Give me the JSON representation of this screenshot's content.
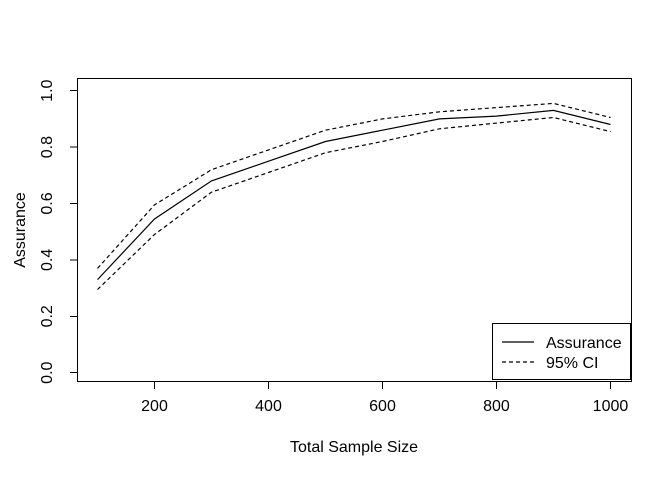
{
  "chart_data": {
    "type": "line",
    "title": "",
    "xlabel": "Total Sample Size",
    "ylabel": "Assurance",
    "x": [
      100,
      200,
      300,
      400,
      500,
      600,
      700,
      800,
      900,
      1000
    ],
    "series": [
      {
        "name": "Assurance",
        "line_style": "solid",
        "values": [
          0.33,
          0.545,
          0.68,
          0.75,
          0.82,
          0.86,
          0.9,
          0.91,
          0.93,
          0.88
        ]
      },
      {
        "name": "95% CI",
        "line_style": "dashed",
        "values_upper": [
          0.37,
          0.595,
          0.72,
          0.79,
          0.86,
          0.9,
          0.925,
          0.94,
          0.955,
          0.905
        ],
        "values_lower": [
          0.295,
          0.49,
          0.64,
          0.71,
          0.78,
          0.82,
          0.865,
          0.885,
          0.905,
          0.855
        ]
      }
    ],
    "x_ticks": [
      200,
      400,
      600,
      800,
      1000
    ],
    "y_ticks": [
      "0.0",
      "0.2",
      "0.4",
      "0.6",
      "0.8",
      "1.0"
    ],
    "xlim": [
      100,
      1000
    ],
    "ylim": [
      0.0,
      1.0
    ],
    "grid": "off",
    "legend": {
      "position": "bottomright",
      "entries": [
        {
          "label": "Assurance",
          "line": "solid"
        },
        {
          "label": "95% CI",
          "line": "dashed"
        }
      ]
    },
    "colors": {
      "line": "#000000",
      "background": "#ffffff",
      "text": "#000000"
    }
  }
}
